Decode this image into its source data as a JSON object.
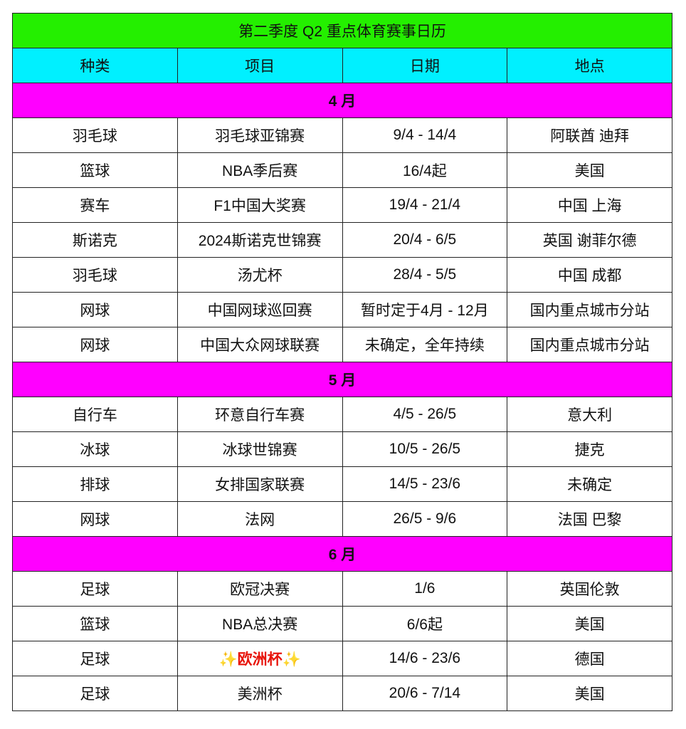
{
  "title": "第二季度 Q2 重点体育赛事日历",
  "header": [
    "种类",
    "项目",
    "日期",
    "地点"
  ],
  "sections": [
    {
      "month": "4 月",
      "rows": [
        [
          "羽毛球",
          "羽毛球亚锦赛",
          "9/4 - 14/4",
          "阿联酋 迪拜"
        ],
        [
          "篮球",
          "NBA季后赛",
          "16/4起",
          "美国"
        ],
        [
          "赛车",
          "F1中国大奖赛",
          "19/4 - 21/4",
          "中国 上海"
        ],
        [
          "斯诺克",
          "2024斯诺克世锦赛",
          "20/4 - 6/5",
          "英国 谢菲尔德"
        ],
        [
          "羽毛球",
          "汤尤杯",
          "28/4 - 5/5",
          "中国 成都"
        ],
        [
          "网球",
          "中国网球巡回赛",
          "暂时定于4月 - 12月",
          "国内重点城市分站"
        ],
        [
          "网球",
          "中国大众网球联赛",
          "未确定，全年持续",
          "国内重点城市分站"
        ]
      ]
    },
    {
      "month": "5 月",
      "rows": [
        [
          "自行车",
          "环意自行车赛",
          "4/5 - 26/5",
          "意大利"
        ],
        [
          "冰球",
          "冰球世锦赛",
          "10/5 - 26/5",
          "捷克"
        ],
        [
          "排球",
          "女排国家联赛",
          "14/5 - 23/6",
          "未确定"
        ],
        [
          "网球",
          "法网",
          "26/5 - 9/6",
          "法国 巴黎"
        ]
      ]
    },
    {
      "month": "6 月",
      "rows": [
        [
          "足球",
          "欧冠决赛",
          "1/6",
          "英国伦敦"
        ],
        [
          "篮球",
          "NBA总决赛",
          "6/6起",
          "美国"
        ],
        [
          "足球",
          "✨欧洲杯✨",
          "14/6 - 23/6",
          "德国"
        ],
        [
          "足球",
          "美洲杯",
          "20/6 - 7/14",
          "美国"
        ]
      ]
    }
  ]
}
